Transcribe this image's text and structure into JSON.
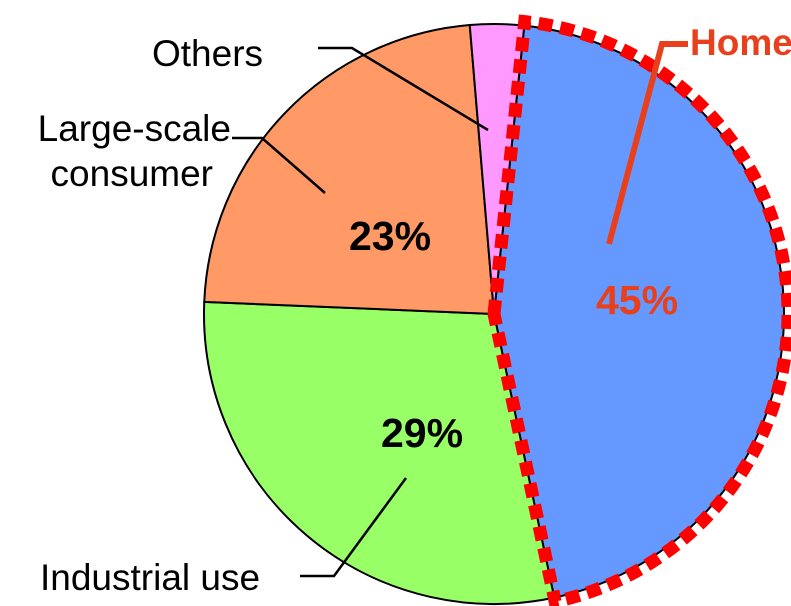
{
  "chart_data": {
    "type": "pie",
    "start_angle_deg": 6,
    "direction": "clockwise",
    "slices": [
      {
        "label": "Home",
        "value": 45,
        "value_label": "45%",
        "color": "#6699ff",
        "highlight": true
      },
      {
        "label": "Industrial use",
        "value": 29,
        "value_label": "29%",
        "color": "#99ff66"
      },
      {
        "label": "Large-scale consumer",
        "label_lines": [
          "Large-scale",
          "consumer"
        ],
        "value": 23,
        "value_label": "23%",
        "color": "#ff9966"
      },
      {
        "label": "Others",
        "value": 3,
        "value_label": "",
        "color": "#ff99ff"
      }
    ],
    "highlight_color": "#e8401c",
    "dash_color": "#ff0000"
  }
}
